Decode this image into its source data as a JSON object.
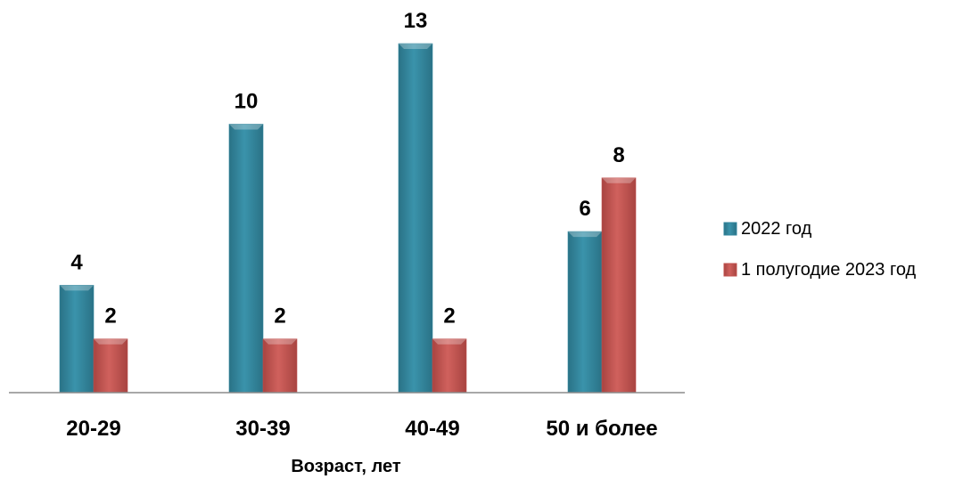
{
  "chart_data": {
    "type": "bar",
    "categories": [
      "20-29",
      "30-39",
      "40-49",
      "50 и более"
    ],
    "series": [
      {
        "name": "2022 год",
        "values": [
          4,
          10,
          13,
          6
        ],
        "color": "#31859C"
      },
      {
        "name": "1 полугодие 2023 год",
        "values": [
          2,
          2,
          2,
          8
        ],
        "color": "#C0504D"
      }
    ],
    "xlabel": "Возраст, лет",
    "ylabel": "",
    "ylim": [
      0,
      13
    ],
    "grid": false,
    "legend_position": "right",
    "data_labels": true
  }
}
